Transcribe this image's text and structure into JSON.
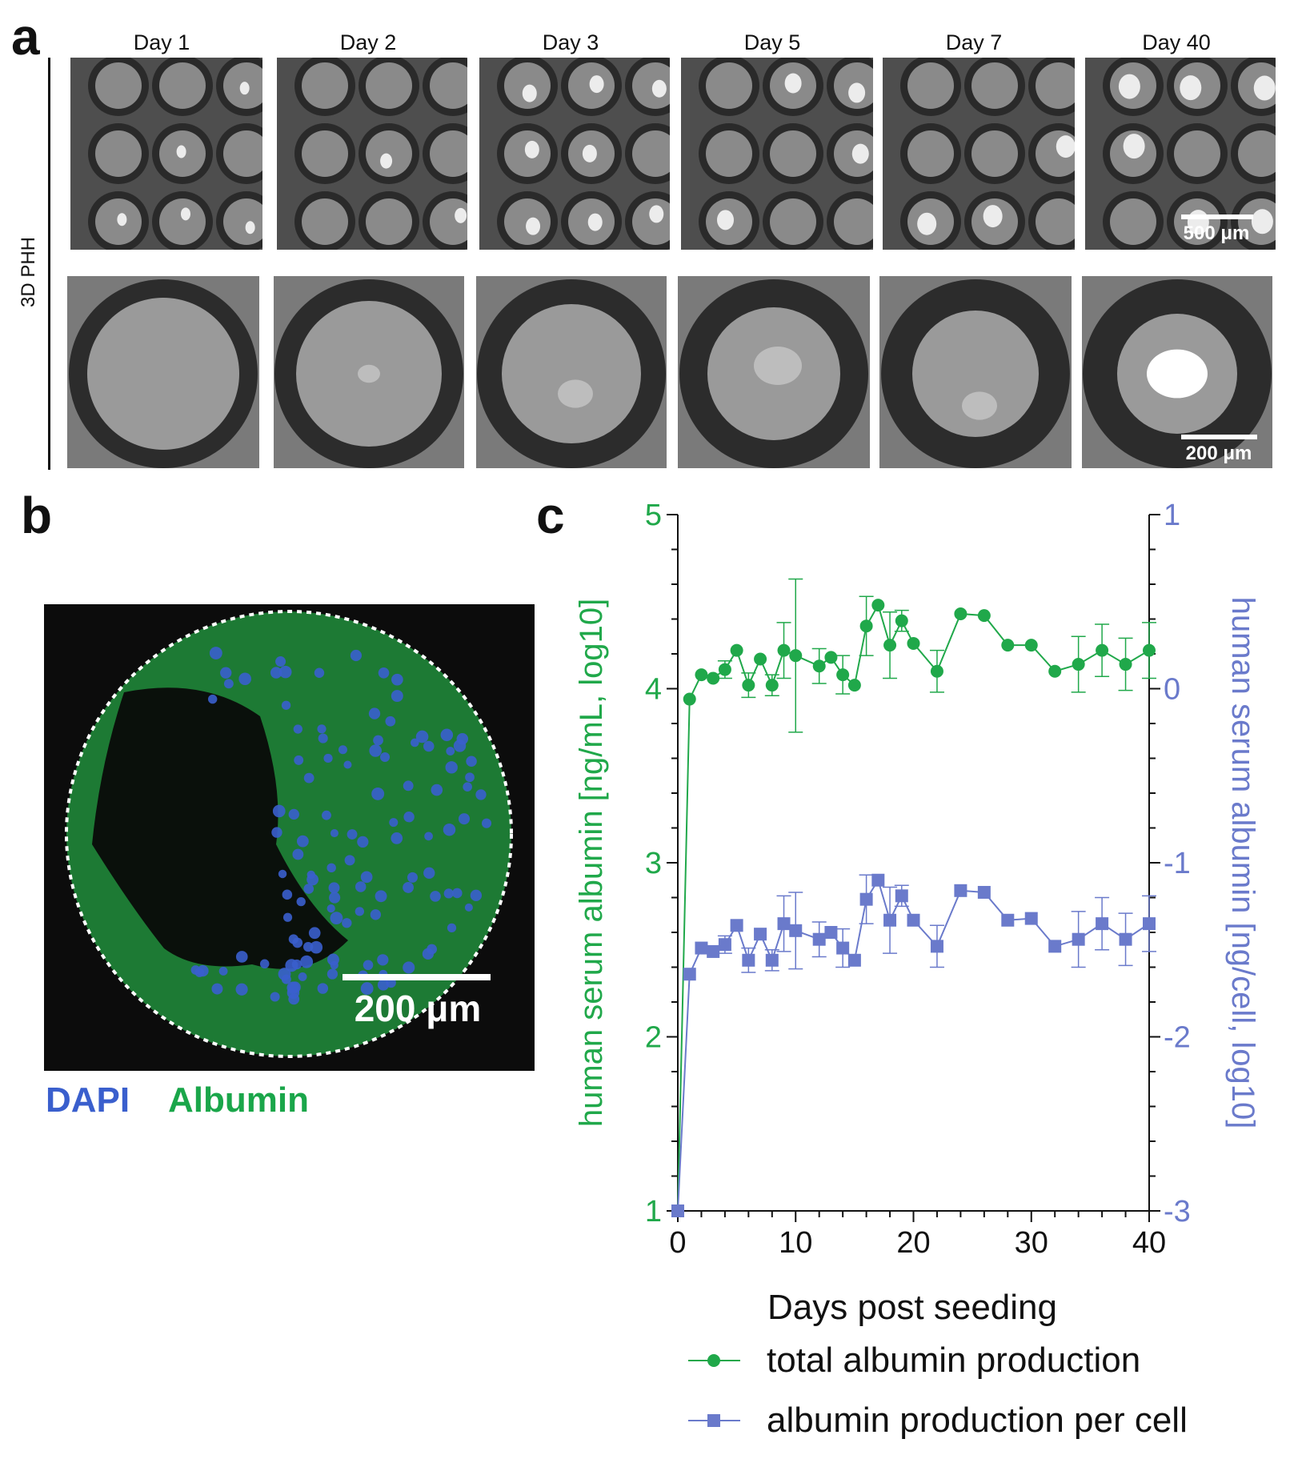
{
  "panel_a": {
    "letter": "a",
    "row_label": "3D PHH",
    "days": [
      "Day 1",
      "Day 2",
      "Day 3",
      "Day 5",
      "Day 7",
      "Day 40"
    ],
    "scalebar_top": "500 μm",
    "scalebar_bottom": "200 μm"
  },
  "panel_b": {
    "letter": "b",
    "scalebar": "200 μm",
    "legend_dapi": "DAPI",
    "legend_albumin": "Albumin",
    "colors": {
      "dapi": "#3a5fcd",
      "albumin": "#1aa64a"
    }
  },
  "panel_c": {
    "letter": "c"
  },
  "chart_data": {
    "type": "line",
    "xlabel": "Days post seeding",
    "ylabel_left": "human serum albumin [ng/mL, log10]",
    "ylabel_right": "human serum albumin [ng/cell, log10]",
    "xlim": [
      0,
      40
    ],
    "ylim_left": [
      1,
      5
    ],
    "ylim_right": [
      -3,
      1
    ],
    "xticks": [
      0,
      10,
      20,
      30,
      40
    ],
    "yticks_left": [
      1,
      2,
      3,
      4,
      5
    ],
    "yticks_right": [
      -3,
      -2,
      -1,
      0,
      1
    ],
    "series": [
      {
        "name": "total albumin production",
        "axis": "left",
        "marker": "circle",
        "color": "#20a84a",
        "x": [
          0,
          1,
          2,
          3,
          4,
          5,
          6,
          7,
          8,
          9,
          10,
          12,
          13,
          14,
          15,
          16,
          17,
          18,
          19,
          20,
          22,
          24,
          26,
          28,
          30,
          32,
          34,
          36,
          38,
          40
        ],
        "values": [
          1.0,
          3.94,
          4.08,
          4.06,
          4.11,
          4.22,
          4.02,
          4.17,
          4.02,
          4.22,
          4.19,
          4.13,
          4.18,
          4.08,
          4.02,
          4.36,
          4.48,
          4.25,
          4.39,
          4.26,
          4.1,
          4.43,
          4.42,
          4.25,
          4.25,
          4.1,
          4.14,
          4.22,
          4.14,
          4.22
        ],
        "errors": [
          0,
          0,
          0,
          0,
          0.05,
          0,
          0.07,
          0,
          0.06,
          0.16,
          0.44,
          0.1,
          0,
          0.11,
          0,
          0.17,
          0,
          0.19,
          0.06,
          0,
          0.12,
          0,
          0,
          0,
          0,
          0,
          0.16,
          0.15,
          0.15,
          0.16
        ]
      },
      {
        "name": "albumin production per cell",
        "axis": "right",
        "marker": "square",
        "color": "#6a7acb",
        "x": [
          0,
          1,
          2,
          3,
          4,
          5,
          6,
          7,
          8,
          9,
          10,
          12,
          13,
          14,
          15,
          16,
          17,
          18,
          19,
          20,
          22,
          24,
          26,
          28,
          30,
          32,
          34,
          36,
          38,
          40
        ],
        "values": [
          -3.0,
          -1.64,
          -1.49,
          -1.51,
          -1.47,
          -1.36,
          -1.56,
          -1.41,
          -1.56,
          -1.35,
          -1.39,
          -1.44,
          -1.4,
          -1.49,
          -1.56,
          -1.21,
          -1.1,
          -1.33,
          -1.19,
          -1.33,
          -1.48,
          -1.16,
          -1.17,
          -1.33,
          -1.32,
          -1.48,
          -1.44,
          -1.35,
          -1.44,
          -1.35
        ],
        "errors": [
          0,
          0,
          0,
          0,
          0.05,
          0,
          0.07,
          0,
          0.06,
          0.16,
          0.22,
          0.1,
          0,
          0.11,
          0,
          0.14,
          0,
          0.19,
          0.06,
          0,
          0.12,
          0,
          0,
          0,
          0,
          0,
          0.16,
          0.15,
          0.15,
          0.16
        ]
      }
    ]
  }
}
